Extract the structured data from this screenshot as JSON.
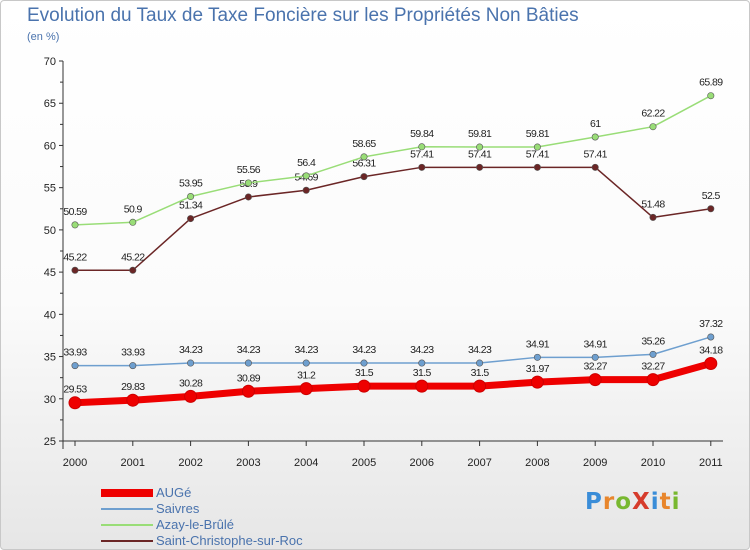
{
  "title": "Evolution du Taux de Taxe Foncière sur les Propriétés Non Bâties",
  "subtitle": "(en %)",
  "logo": {
    "text": "ProXiti",
    "letters": [
      "P",
      "r",
      "o",
      "X",
      "i",
      "t",
      "i"
    ],
    "colors": [
      "#3a8dd8",
      "#e8862c",
      "#78b830",
      "#d63c2c",
      "#3a8dd8",
      "#e8862c",
      "#78b830"
    ]
  },
  "chart_data": {
    "type": "line",
    "title": "Evolution du Taux de Taxe Foncière sur les Propriétés Non Bâties",
    "ylabel": "(en %)",
    "xlabel": "",
    "ylim": [
      25,
      70
    ],
    "yticks": [
      "25",
      "30",
      "35",
      "40",
      "45",
      "50",
      "55",
      "60",
      "65",
      "70"
    ],
    "categories": [
      "2000",
      "2001",
      "2002",
      "2003",
      "2004",
      "2005",
      "2006",
      "2007",
      "2008",
      "2009",
      "2010",
      "2011"
    ],
    "series": [
      {
        "name": "AUGé",
        "color": "#ee0000",
        "values": [
          29.53,
          29.83,
          30.28,
          30.89,
          31.2,
          31.5,
          31.5,
          31.5,
          31.97,
          32.27,
          32.27,
          34.18
        ],
        "labels": [
          "29.53",
          "29.83",
          "30.28",
          "30.89",
          "31.2",
          "31.5",
          "31.5",
          "31.5",
          "31.97",
          "32.27",
          "32.27",
          "34.18"
        ]
      },
      {
        "name": "Saivres",
        "color": "#6e9fcf",
        "values": [
          33.93,
          33.93,
          34.23,
          34.23,
          34.23,
          34.23,
          34.23,
          34.23,
          34.91,
          34.91,
          35.26,
          37.32
        ],
        "labels": [
          "33.93",
          "33.93",
          "34.23",
          "34.23",
          "34.23",
          "34.23",
          "34.23",
          "34.23",
          "34.91",
          "34.91",
          "35.26",
          "37.32"
        ]
      },
      {
        "name": "Azay-le-Brûlé",
        "color": "#99dd77",
        "values": [
          50.59,
          50.9,
          53.95,
          55.56,
          56.4,
          58.65,
          59.84,
          59.81,
          59.81,
          61,
          62.22,
          65.89
        ],
        "labels": [
          "50.59",
          "50.9",
          "53.95",
          "55.56",
          "56.4",
          "58.65",
          "59.84",
          "59.81",
          "59.81",
          "61",
          "62.22",
          "65.89"
        ]
      },
      {
        "name": "Saint-Christophe-sur-Roc",
        "color": "#6b2626",
        "values": [
          45.22,
          45.22,
          51.34,
          53.9,
          54.69,
          56.31,
          57.41,
          57.41,
          57.41,
          57.41,
          51.48,
          52.5
        ],
        "labels": [
          "45.22",
          "45.22",
          "51.34",
          "53.9",
          "54.69",
          "56.31",
          "57.41",
          "57.41",
          "57.41",
          "57.41",
          "51.48",
          "52.5"
        ]
      }
    ]
  }
}
